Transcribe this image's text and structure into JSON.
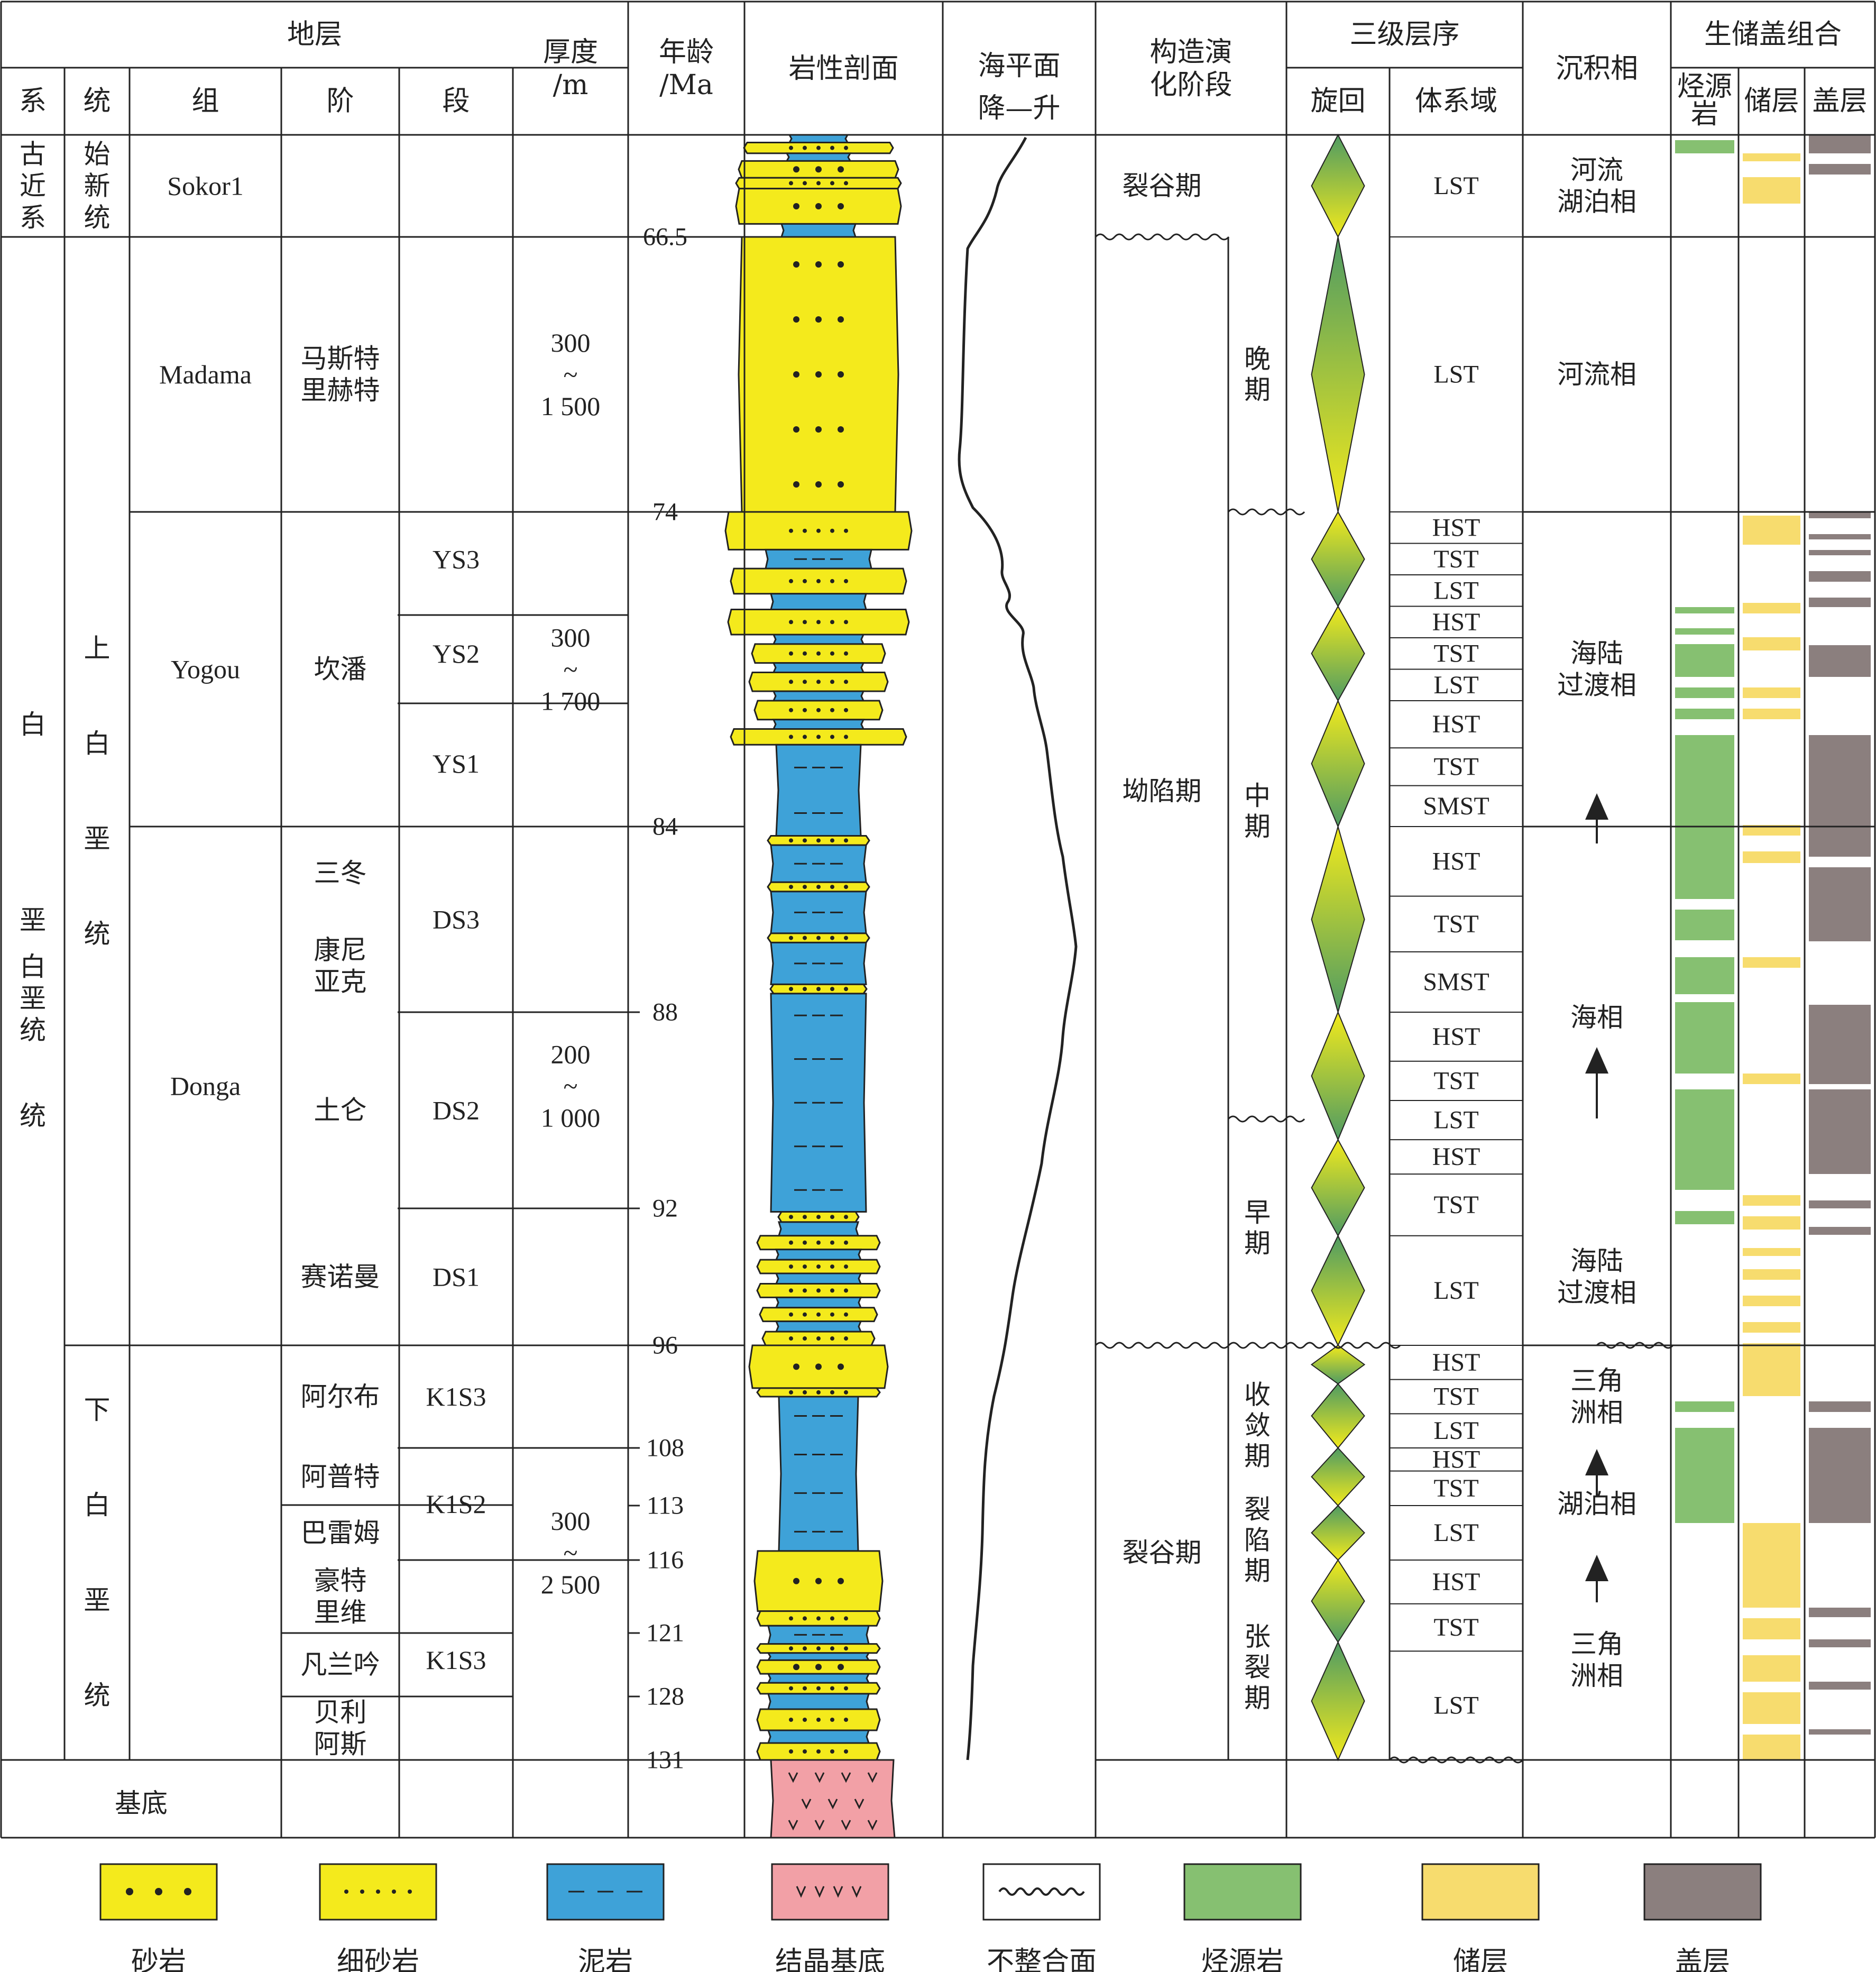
{
  "headers": {
    "strata": "地层",
    "sys": "系",
    "series": "统",
    "formation": "组",
    "stage": "阶",
    "member": "段",
    "thickness": [
      "厚度",
      "/m"
    ],
    "age": [
      "年龄",
      "/Ma"
    ],
    "lithology": "岩性剖面",
    "sealevel": [
      "海平面",
      "降—升"
    ],
    "tectonic": [
      "构造演",
      "化阶段"
    ],
    "sequence": "三级层序",
    "cycle": "旋回",
    "systems_tract": "体系域",
    "facies": "沉积相",
    "combo": "生储盖组合",
    "source": [
      "烃源",
      "岩"
    ],
    "reservoir": "储层",
    "cap": "盖层"
  },
  "systems": [
    {
      "label": [
        "古",
        "近",
        "系"
      ],
      "top": 0,
      "bot": 66.5
    },
    {
      "label": [
        "白",
        "垩",
        "统"
      ],
      "top": 66.5,
      "bot": 131
    }
  ],
  "series": [
    {
      "label": [
        "始",
        "新",
        "统"
      ],
      "top": 0,
      "bot": 66.5
    },
    {
      "label": [
        "上",
        "白",
        "垩",
        "统"
      ],
      "top": 66.5,
      "bot": 96
    },
    {
      "label": [
        "下",
        "白",
        "垩",
        "统"
      ],
      "top": 96,
      "bot": 131
    }
  ],
  "formations": [
    {
      "label": "Sokor1",
      "top": 0,
      "bot": 66.5
    },
    {
      "label": "Madama",
      "top": 66.5,
      "bot": 74
    },
    {
      "label": "Yogou",
      "top": 74,
      "bot": 84
    },
    {
      "label": "Donga",
      "top": 84,
      "bot": 96
    }
  ],
  "stages": [
    {
      "label": [
        "马斯特",
        "里赫特"
      ],
      "top": 66.5,
      "bot": 74
    },
    {
      "label": [
        "坎潘"
      ],
      "top": 74,
      "bot": 84
    },
    {
      "label": [
        "三冬"
      ],
      "top": 84,
      "bot": 86
    },
    {
      "label": [
        "康尼",
        "亚克"
      ],
      "top": 86,
      "bot": 88
    },
    {
      "label": [
        "土仑"
      ],
      "top": 88,
      "bot": 92
    },
    {
      "label": [
        "赛诺曼"
      ],
      "top": 92,
      "bot": 96
    },
    {
      "label": [
        "阿尔布"
      ],
      "top": 96,
      "bot": 108
    },
    {
      "label": [
        "阿普特"
      ],
      "top": 108,
      "bot": 113
    },
    {
      "label": [
        "巴雷姆"
      ],
      "top": 113,
      "bot": 116
    },
    {
      "label": [
        "豪特",
        "里维"
      ],
      "top": 116,
      "bot": 121
    },
    {
      "label": [
        "凡兰吟"
      ],
      "top": 121,
      "bot": 128
    },
    {
      "label": [
        "贝利",
        "阿斯"
      ],
      "top": 128,
      "bot": 131
    }
  ],
  "members": [
    {
      "label": "YS3",
      "top": 74,
      "bot": 77
    },
    {
      "label": "YS2",
      "top": 77,
      "bot": 80
    },
    {
      "label": "YS1",
      "top": 80,
      "bot": 84
    },
    {
      "label": "DS3",
      "top": 84,
      "bot": 88
    },
    {
      "label": "DS2",
      "top": 88,
      "bot": 92
    },
    {
      "label": "DS1",
      "top": 92,
      "bot": 96
    },
    {
      "label": "K1S3",
      "top": 96,
      "bot": 108
    },
    {
      "label": "K1S2",
      "top": 108,
      "bot": 116
    },
    {
      "label": "K1S3",
      "top": 116,
      "bot": 131
    }
  ],
  "thickness": [
    {
      "label": [
        "300",
        "~",
        "1 500"
      ],
      "top": 66.5,
      "bot": 74
    },
    {
      "label": [
        "300",
        "~",
        "1 700"
      ],
      "top": 74,
      "bot": 84
    },
    {
      "label": [
        "200",
        "~",
        "1 000"
      ],
      "top": 84,
      "bot": 96
    },
    {
      "label": [
        "300",
        "~",
        "2 500"
      ],
      "top": 96,
      "bot": 131
    }
  ],
  "ages": [
    "66.5",
    "74",
    "84",
    "88",
    "92",
    "96",
    "108",
    "113",
    "116",
    "121",
    "128",
    "131"
  ],
  "basement_label": "基底",
  "tectonic": [
    {
      "label": "裂谷期",
      "top": 0,
      "bot": 66.5
    },
    {
      "label": "坳陷期",
      "top": 66.5,
      "bot": 96
    },
    {
      "label": "裂谷期",
      "top": 96,
      "bot": 131
    }
  ],
  "tectonic_sub": [
    {
      "label": [
        "晚",
        "期"
      ],
      "top": 66.5,
      "bot": 74
    },
    {
      "label": [
        "中",
        "期"
      ],
      "top": 74,
      "bot": 90
    },
    {
      "label": [
        "早",
        "期"
      ],
      "top": 90,
      "bot": 96
    },
    {
      "label": [
        "收",
        "敛",
        "期"
      ],
      "top": 96,
      "bot": 113
    },
    {
      "label": [
        "裂",
        "陷",
        "期"
      ],
      "top": 113,
      "bot": 117
    },
    {
      "label": [
        "张",
        "裂",
        "期"
      ],
      "top": 117,
      "bot": 131
    }
  ],
  "tracts": [
    {
      "label": "LST",
      "top": 0,
      "bot": 66.5
    },
    {
      "label": "LST",
      "top": 66.5,
      "bot": 74
    },
    {
      "label": "HST",
      "top": 74,
      "bot": 75
    },
    {
      "label": "TST",
      "top": 75,
      "bot": 76
    },
    {
      "label": "LST",
      "top": 76,
      "bot": 77
    },
    {
      "label": "HST",
      "top": 77,
      "bot": 78
    },
    {
      "label": "TST",
      "top": 78,
      "bot": 79
    },
    {
      "label": "LST",
      "top": 79,
      "bot": 80
    },
    {
      "label": "HST",
      "top": 80,
      "bot": 81.5
    },
    {
      "label": "TST",
      "top": 81.5,
      "bot": 82.7
    },
    {
      "label": "SMST",
      "top": 82.7,
      "bot": 84
    },
    {
      "label": "HST",
      "top": 84,
      "bot": 85.5
    },
    {
      "label": "TST",
      "top": 85.5,
      "bot": 86.7
    },
    {
      "label": "SMST",
      "top": 86.7,
      "bot": 88
    },
    {
      "label": "HST",
      "top": 88,
      "bot": 89
    },
    {
      "label": "TST",
      "top": 89,
      "bot": 89.8
    },
    {
      "label": "LST",
      "top": 89.8,
      "bot": 90.6
    },
    {
      "label": "HST",
      "top": 90.6,
      "bot": 91.3
    },
    {
      "label": "TST",
      "top": 91.3,
      "bot": 92.8
    },
    {
      "label": "LST",
      "top": 92.8,
      "bot": 96
    },
    {
      "label": "HST",
      "top": 96,
      "bot": 100
    },
    {
      "label": "TST",
      "top": 100,
      "bot": 104
    },
    {
      "label": "LST",
      "top": 104,
      "bot": 108
    },
    {
      "label": "HST",
      "top": 108,
      "bot": 110
    },
    {
      "label": "TST",
      "top": 110,
      "bot": 113
    },
    {
      "label": "LST",
      "top": 113,
      "bot": 116
    },
    {
      "label": "HST",
      "top": 116,
      "bot": 119
    },
    {
      "label": "TST",
      "top": 119,
      "bot": 123
    },
    {
      "label": "LST",
      "top": 123,
      "bot": 131
    }
  ],
  "facies": [
    {
      "label": [
        "河流",
        "湖泊相"
      ],
      "top": 0,
      "bot": 66.5
    },
    {
      "label": [
        "河流相"
      ],
      "top": 66.5,
      "bot": 74
    },
    {
      "label": [
        "海陆",
        "过渡相"
      ],
      "top": 74,
      "bot": 84
    },
    {
      "label": [
        "海相"
      ],
      "top": 84,
      "bot": 92
    },
    {
      "label": [
        "海陆",
        "过渡相"
      ],
      "top": 92,
      "bot": 96
    },
    {
      "label": [
        "三角",
        "洲相"
      ],
      "top": 96,
      "bot": 108
    },
    {
      "label": [
        "湖泊相"
      ],
      "top": 108,
      "bot": 116
    },
    {
      "label": [
        "三角",
        "洲相"
      ],
      "top": 116,
      "bot": 131
    }
  ],
  "legend": [
    {
      "key": "sandstone",
      "label": "砂岩"
    },
    {
      "key": "finesand",
      "label": "细砂岩"
    },
    {
      "key": "mudstone",
      "label": "泥岩"
    },
    {
      "key": "basement",
      "label": "结晶基底"
    },
    {
      "key": "unconformity",
      "label": "不整合面"
    },
    {
      "key": "source",
      "label": "烃源岩"
    },
    {
      "key": "reservoir",
      "label": "储层"
    },
    {
      "key": "cap",
      "label": "盖层"
    }
  ],
  "colors": {
    "sandstone": "#f4ea1c",
    "mudstone": "#3ea2d8",
    "basement": "#f2a0a6",
    "source": "#86c071",
    "reservoir": "#f7dc6e",
    "cap": "#8b7f7e",
    "cycle_green": "#4f9b63",
    "line": "#222222"
  }
}
